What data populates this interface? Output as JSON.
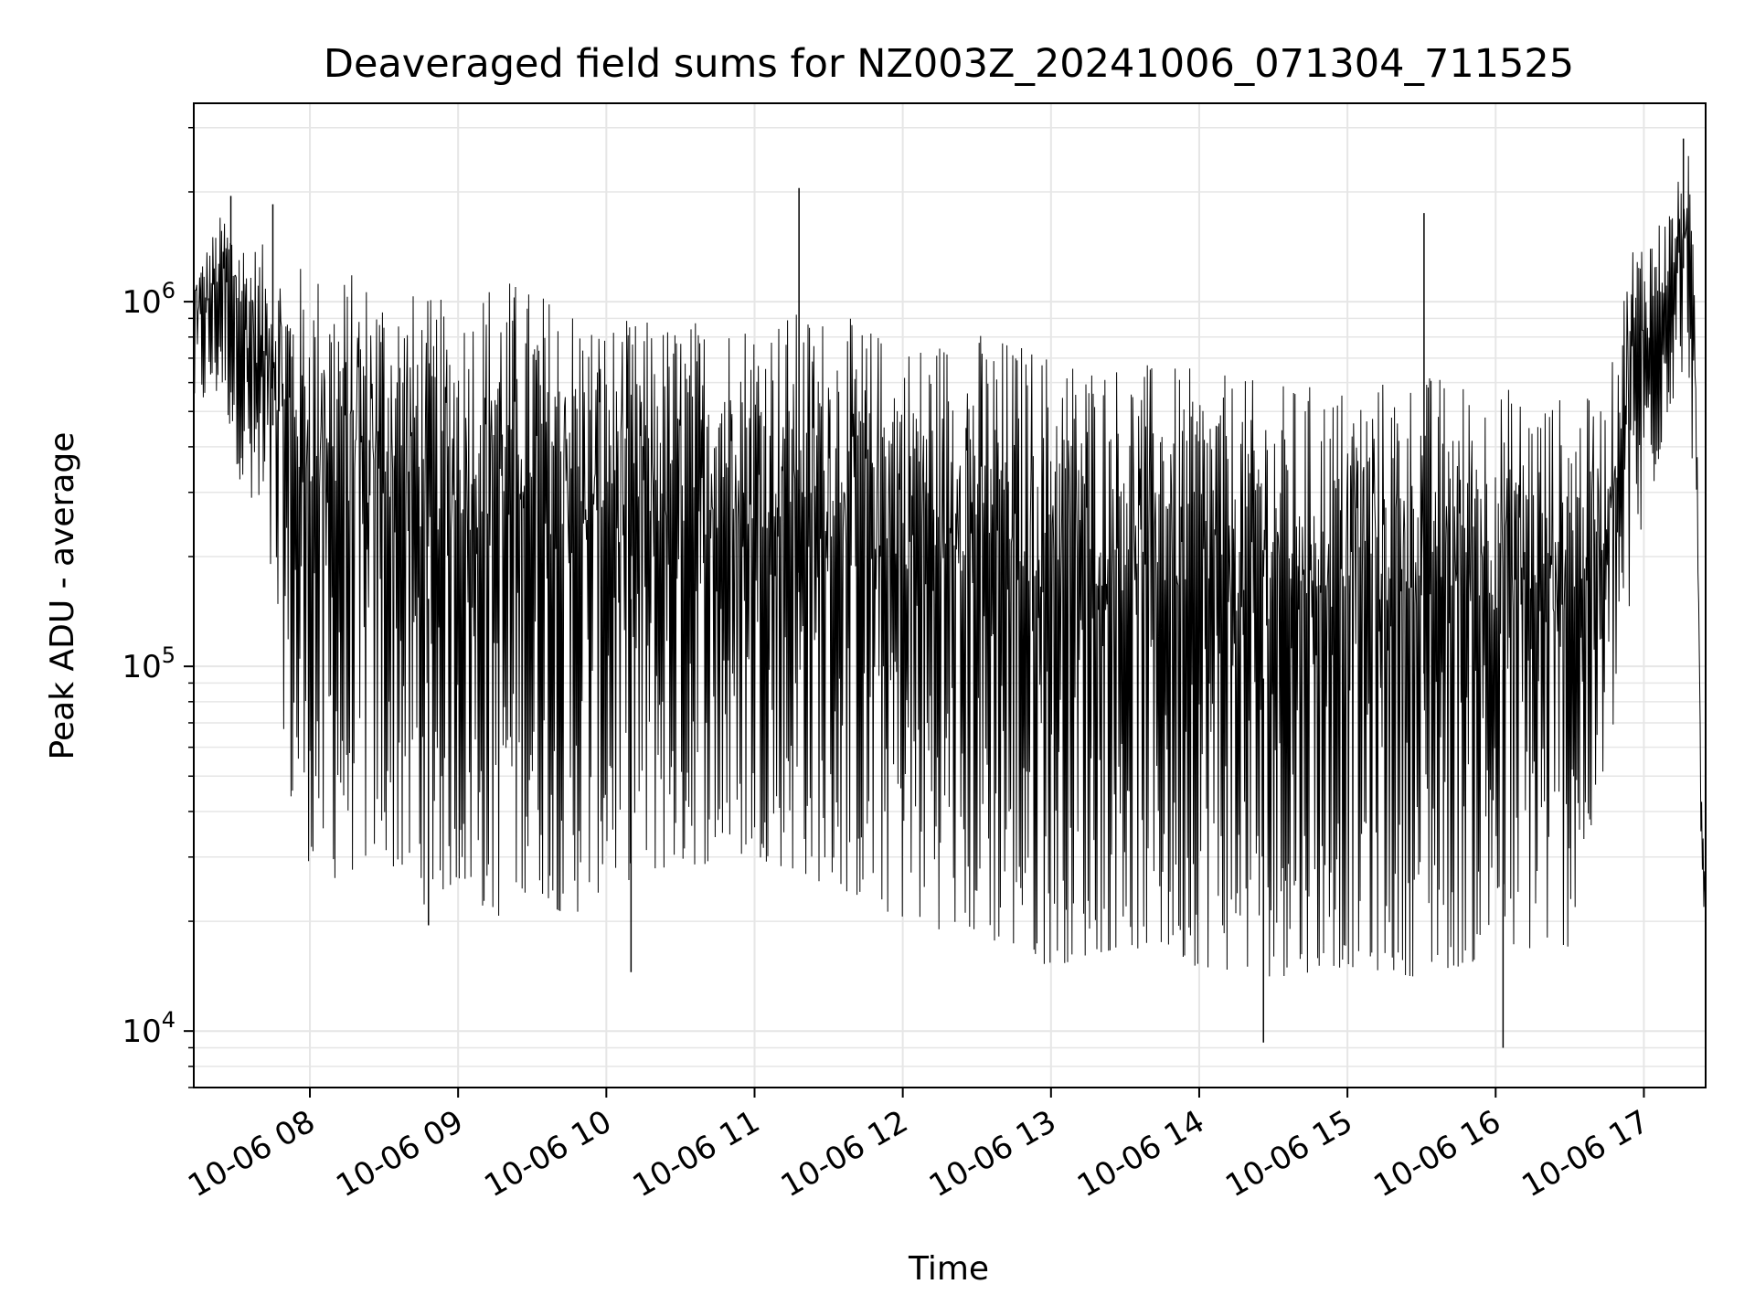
{
  "chart_data": {
    "type": "line",
    "title": "Deaveraged field sums for NZ003Z_20241006_071304_711525",
    "xlabel": "Time",
    "ylabel": "Peak ADU - average",
    "yscale": "log",
    "ylim": [
      7000,
      3500000
    ],
    "xlim": [
      "2024-10-06 07:13",
      "2024-10-06 17:25"
    ],
    "grid": true,
    "line_color": "#000000",
    "grid_color": "#e6e6e6",
    "x_ticks": [
      {
        "value": "2024-10-06 08:00",
        "label": "10-06 08"
      },
      {
        "value": "2024-10-06 09:00",
        "label": "10-06 09"
      },
      {
        "value": "2024-10-06 10:00",
        "label": "10-06 10"
      },
      {
        "value": "2024-10-06 11:00",
        "label": "10-06 11"
      },
      {
        "value": "2024-10-06 12:00",
        "label": "10-06 12"
      },
      {
        "value": "2024-10-06 13:00",
        "label": "10-06 13"
      },
      {
        "value": "2024-10-06 14:00",
        "label": "10-06 14"
      },
      {
        "value": "2024-10-06 15:00",
        "label": "10-06 15"
      },
      {
        "value": "2024-10-06 16:00",
        "label": "10-06 16"
      },
      {
        "value": "2024-10-06 17:00",
        "label": "10-06 17"
      }
    ],
    "y_ticks": [
      {
        "value": 10000,
        "base": "10",
        "exp": "4"
      },
      {
        "value": 100000,
        "base": "10",
        "exp": "5"
      },
      {
        "value": 1000000,
        "base": "10",
        "exp": "6"
      }
    ],
    "series": [
      {
        "envelope": [
          {
            "t": "2024-10-06 07:13",
            "hi": 1200000,
            "lo": 500000
          },
          {
            "t": "2024-10-06 07:25",
            "hi": 1800000,
            "lo": 550000
          },
          {
            "t": "2024-10-06 07:35",
            "hi": 1500000,
            "lo": 250000
          },
          {
            "t": "2024-10-06 07:45",
            "hi": 1400000,
            "lo": 150000
          },
          {
            "t": "2024-10-06 07:53",
            "hi": 1300000,
            "lo": 35000
          },
          {
            "t": "2024-10-06 08:05",
            "hi": 1250000,
            "lo": 25000
          },
          {
            "t": "2024-10-06 08:30",
            "hi": 1200000,
            "lo": 30000
          },
          {
            "t": "2024-10-06 08:45",
            "hi": 1050000,
            "lo": 22000
          },
          {
            "t": "2024-10-06 09:00",
            "hi": 1000000,
            "lo": 25000
          },
          {
            "t": "2024-10-06 09:15",
            "hi": 1250000,
            "lo": 20000
          },
          {
            "t": "2024-10-06 09:30",
            "hi": 1100000,
            "lo": 25000
          },
          {
            "t": "2024-10-06 09:45",
            "hi": 1050000,
            "lo": 20000
          },
          {
            "t": "2024-10-06 10:00",
            "hi": 900000,
            "lo": 25000
          },
          {
            "t": "2024-10-06 10:30",
            "hi": 900000,
            "lo": 28000
          },
          {
            "t": "2024-10-06 11:00",
            "hi": 950000,
            "lo": 30000
          },
          {
            "t": "2024-10-06 11:30",
            "hi": 950000,
            "lo": 25000
          },
          {
            "t": "2024-10-06 12:00",
            "hi": 800000,
            "lo": 20000
          },
          {
            "t": "2024-10-06 12:30",
            "hi": 850000,
            "lo": 18000
          },
          {
            "t": "2024-10-06 13:00",
            "hi": 750000,
            "lo": 15000
          },
          {
            "t": "2024-10-06 13:30",
            "hi": 700000,
            "lo": 17000
          },
          {
            "t": "2024-10-06 14:00",
            "hi": 650000,
            "lo": 15000
          },
          {
            "t": "2024-10-06 14:30",
            "hi": 600000,
            "lo": 14000
          },
          {
            "t": "2024-10-06 15:00",
            "hi": 600000,
            "lo": 15000
          },
          {
            "t": "2024-10-06 15:30",
            "hi": 650000,
            "lo": 14000
          },
          {
            "t": "2024-10-06 16:00",
            "hi": 600000,
            "lo": 16000
          },
          {
            "t": "2024-10-06 16:30",
            "hi": 550000,
            "lo": 17000
          },
          {
            "t": "2024-10-06 16:45",
            "hi": 550000,
            "lo": 50000
          },
          {
            "t": "2024-10-06 16:55",
            "hi": 1500000,
            "lo": 150000
          },
          {
            "t": "2024-10-06 17:10",
            "hi": 1800000,
            "lo": 500000
          },
          {
            "t": "2024-10-06 17:18",
            "hi": 2600000,
            "lo": 700000
          },
          {
            "t": "2024-10-06 17:21",
            "hi": 1000000,
            "lo": 200000
          },
          {
            "t": "2024-10-06 17:23",
            "hi": 60000,
            "lo": 22000
          },
          {
            "t": "2024-10-06 17:25",
            "hi": 27000,
            "lo": 20000
          }
        ],
        "spikes": [
          {
            "t": "2024-10-06 07:28",
            "value": 1950000
          },
          {
            "t": "2024-10-06 07:45",
            "value": 1850000
          },
          {
            "t": "2024-10-06 08:48",
            "value": 19500
          },
          {
            "t": "2024-10-06 10:10",
            "value": 14500
          },
          {
            "t": "2024-10-06 11:18",
            "value": 2050000
          },
          {
            "t": "2024-10-06 14:26",
            "value": 9300
          },
          {
            "t": "2024-10-06 15:31",
            "value": 1750000
          },
          {
            "t": "2024-10-06 16:03",
            "value": 9000
          },
          {
            "t": "2024-10-06 17:16",
            "value": 2800000
          }
        ]
      }
    ]
  }
}
